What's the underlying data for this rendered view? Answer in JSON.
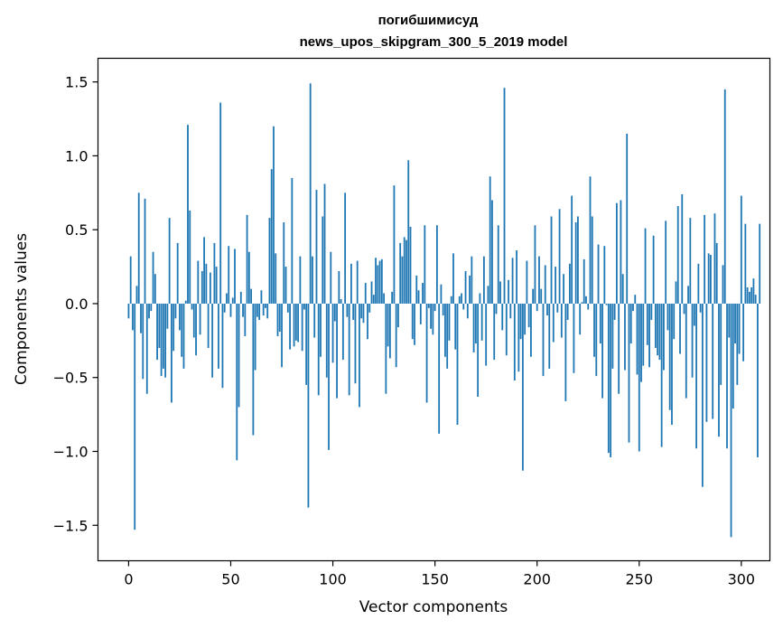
{
  "chart_data": {
    "type": "bar",
    "title": "погибшимисуд",
    "subtitle": "news_upos_skipgram_300_5_2019 model",
    "xlabel": "Vector components",
    "ylabel": "Components values",
    "xlim": [
      -15,
      314
    ],
    "ylim": [
      -1.74,
      1.66
    ],
    "xticks": [
      0,
      50,
      100,
      150,
      200,
      250,
      300
    ],
    "yticks": [
      -1.5,
      -1.0,
      -0.5,
      0.0,
      0.5,
      1.0,
      1.5
    ],
    "ytick_labels": [
      "−1.5",
      "−1.0",
      "−0.5",
      "0.0",
      "0.5",
      "1.0",
      "1.5"
    ],
    "bar_color": "#1f77b4",
    "grid": false,
    "legend": "none",
    "values": [
      -0.1,
      0.32,
      -0.18,
      -1.53,
      0.12,
      0.75,
      -0.2,
      -0.51,
      0.71,
      -0.61,
      -0.1,
      -0.05,
      0.35,
      0.2,
      -0.38,
      -0.3,
      -0.49,
      -0.44,
      -0.5,
      -0.17,
      0.58,
      -0.67,
      -0.32,
      -0.1,
      0.41,
      -0.18,
      -0.36,
      -0.44,
      0.02,
      1.21,
      0.63,
      -0.04,
      -0.23,
      -0.35,
      0.29,
      -0.21,
      0.22,
      0.45,
      0.27,
      -0.3,
      0.21,
      -0.5,
      0.41,
      0.25,
      -0.44,
      1.36,
      -0.57,
      -0.06,
      0.07,
      0.39,
      -0.09,
      0.04,
      0.37,
      -1.06,
      -0.7,
      0.08,
      -0.09,
      -0.22,
      0.6,
      0.35,
      0.1,
      -0.89,
      -0.45,
      -0.09,
      -0.11,
      0.09,
      -0.08,
      -0.03,
      -0.1,
      0.58,
      0.91,
      1.2,
      0.34,
      -0.22,
      -0.19,
      -0.43,
      0.55,
      0.25,
      -0.06,
      -0.31,
      0.85,
      -0.29,
      -0.25,
      -0.26,
      0.32,
      -0.32,
      -0.04,
      -0.55,
      -1.38,
      1.49,
      0.32,
      -0.23,
      0.77,
      -0.62,
      -0.36,
      0.59,
      0.81,
      -0.5,
      -0.99,
      0.35,
      -0.4,
      -0.12,
      -0.64,
      0.22,
      0.03,
      -0.38,
      0.75,
      -0.09,
      -0.62,
      0.27,
      -0.11,
      -0.54,
      0.29,
      -0.7,
      -0.1,
      -0.13,
      0.14,
      -0.24,
      -0.06,
      0.15,
      0.06,
      0.31,
      0.26,
      0.29,
      0.3,
      0.07,
      -0.61,
      -0.29,
      -0.37,
      0.08,
      0.8,
      -0.43,
      -0.16,
      0.41,
      0.32,
      0.45,
      0.43,
      0.97,
      0.52,
      -0.24,
      -0.28,
      0.19,
      0.09,
      -0.14,
      0.14,
      0.53,
      -0.67,
      -0.03,
      -0.17,
      -0.21,
      -0.05,
      0.53,
      -0.88,
      0.13,
      -0.08,
      -0.36,
      -0.44,
      -0.25,
      0.05,
      0.34,
      -0.31,
      -0.82,
      0.05,
      0.07,
      -0.04,
      0.22,
      -0.1,
      0.19,
      0.32,
      -0.33,
      -0.27,
      -0.63,
      0.07,
      -0.25,
      0.32,
      -0.42,
      0.12,
      0.86,
      0.7,
      -0.38,
      -0.07,
      0.53,
      0.15,
      -0.18,
      1.46,
      -0.35,
      0.16,
      -0.1,
      0.31,
      -0.52,
      0.36,
      -0.46,
      -0.24,
      -1.13,
      -0.21,
      0.29,
      -0.16,
      -0.36,
      0.1,
      0.53,
      -0.05,
      0.32,
      0.1,
      -0.49,
      0.26,
      -0.08,
      -0.44,
      0.59,
      -0.26,
      0.25,
      -0.06,
      0.64,
      -0.23,
      0.2,
      -0.66,
      -0.11,
      0.27,
      0.73,
      -0.47,
      0.55,
      0.59,
      -0.21,
      0.01,
      0.3,
      0.05,
      -0.04,
      0.86,
      0.59,
      -0.36,
      -0.49,
      0.4,
      -0.27,
      -0.64,
      0.39,
      -0.01,
      -1.01,
      -1.04,
      -0.44,
      -0.11,
      0.68,
      -0.61,
      0.7,
      0.2,
      -0.45,
      1.15,
      -0.94,
      -0.27,
      -0.05,
      0.06,
      -0.48,
      -1.0,
      -0.53,
      -0.42,
      0.51,
      -0.28,
      -0.43,
      -0.11,
      0.46,
      -0.3,
      -0.35,
      -0.38,
      -0.97,
      -0.45,
      0.56,
      -0.18,
      -0.72,
      -0.82,
      -0.24,
      0.15,
      0.66,
      -0.34,
      0.74,
      -0.07,
      -0.64,
      0.12,
      0.58,
      -0.5,
      -0.15,
      -0.98,
      0.27,
      -0.06,
      -1.24,
      0.6,
      -0.8,
      0.34,
      0.33,
      -0.78,
      0.61,
      0.41,
      -0.9,
      -0.55,
      0.26,
      1.45,
      -0.98,
      -0.23,
      -1.58,
      -0.71,
      -0.27,
      -0.55,
      -0.34,
      0.73,
      -0.39,
      0.54,
      0.11,
      0.08,
      0.11,
      0.17,
      0.06,
      -1.04,
      0.54
    ]
  }
}
